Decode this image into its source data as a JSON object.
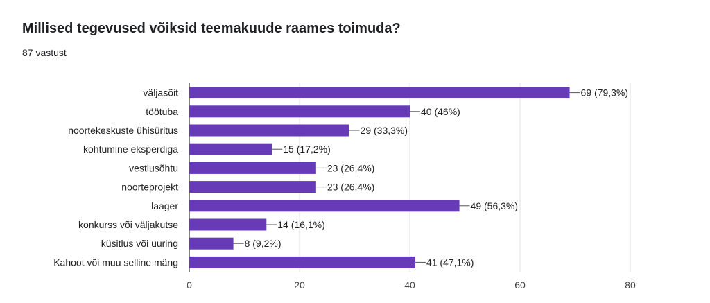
{
  "question": {
    "title": "Millised tegevused võiksid teemakuude raames toimuda?",
    "response_count": "87 vastust"
  },
  "chart_data": {
    "type": "bar",
    "orientation": "horizontal",
    "categories": [
      "väljasõit",
      "töötuba",
      "noortekeskuste ühisüritus",
      "kohtumine eksperdiga",
      "vestlusõhtu",
      "noorteprojekt",
      "laager",
      "konkurss või väljakutse",
      "küsitlus või uuring",
      "Kahoot või muu selline mäng"
    ],
    "values": [
      69,
      40,
      29,
      15,
      23,
      23,
      49,
      14,
      8,
      41
    ],
    "data_labels": [
      "69 (79,3%)",
      "40 (46%)",
      "29 (33,3%)",
      "15 (17,2%)",
      "23 (26,4%)",
      "23 (26,4%)",
      "49 (56,3%)",
      "14 (16,1%)",
      "8 (9,2%)",
      "41 (47,1%)"
    ],
    "xlim": [
      0,
      80
    ],
    "xticks": [
      0,
      20,
      40,
      60,
      80
    ],
    "grid": true,
    "bar_color": "#673ab7"
  }
}
